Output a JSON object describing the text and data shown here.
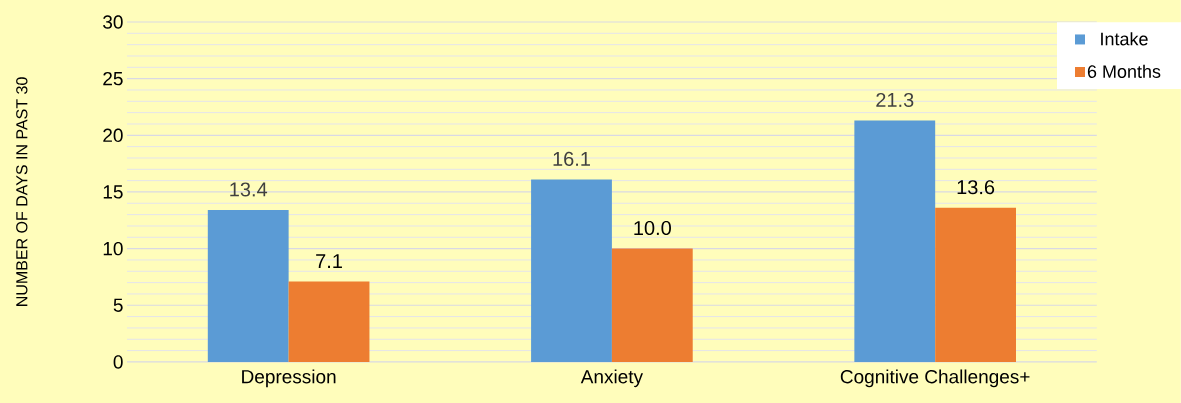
{
  "chart_data": {
    "type": "bar",
    "ylabel": "NUMBER OF DAYS IN PAST 30",
    "categories": [
      "Depression",
      "Anxiety",
      "Cognitive Challenges+"
    ],
    "series": [
      {
        "name": "Intake",
        "color": "#5b9bd5",
        "values": [
          13.4,
          16.1,
          21.3
        ],
        "value_labels": [
          "13.4",
          "16.1",
          "21.3"
        ]
      },
      {
        "name": "6 Months",
        "color": "#ed7d31",
        "values": [
          7.1,
          10.0,
          13.6
        ],
        "value_labels": [
          "7.1",
          "10.0",
          "13.6"
        ]
      }
    ],
    "ylim": [
      0,
      30
    ],
    "yticks": [
      0,
      5,
      10,
      15,
      20,
      25,
      30
    ],
    "grid": "y",
    "legend": "top right"
  }
}
